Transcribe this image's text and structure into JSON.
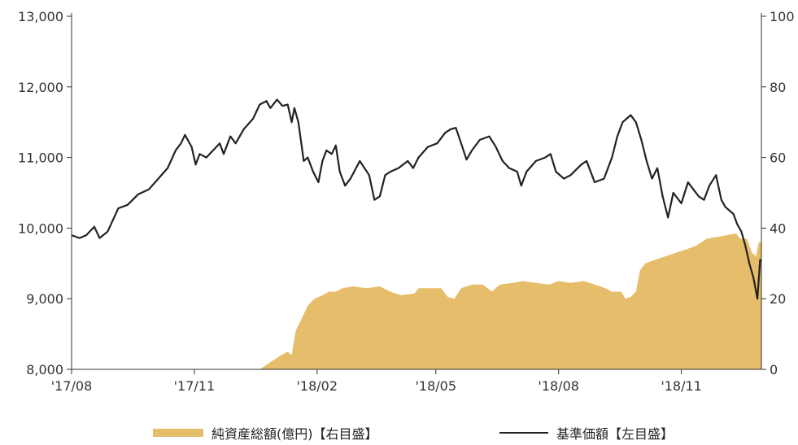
{
  "chart_data": {
    "type": "line",
    "title": "",
    "colors": {
      "nav": "#222222",
      "assets": "#e6bd6a",
      "axis": "#333333"
    },
    "x_start": "2017-08-01",
    "x_end": "2018-12-31",
    "x_ticks": [
      {
        "date": "2017-08-01",
        "label": "'17/08"
      },
      {
        "date": "2017-11-01",
        "label": "'17/11"
      },
      {
        "date": "2018-02-01",
        "label": "'18/02"
      },
      {
        "date": "2018-05-01",
        "label": "'18/05"
      },
      {
        "date": "2018-08-01",
        "label": "'18/08"
      },
      {
        "date": "2018-11-01",
        "label": "'18/11"
      }
    ],
    "y_left": {
      "min": 8000,
      "max": 13000,
      "ticks": [
        "8,000",
        "9,000",
        "10,000",
        "11,000",
        "12,000",
        "13,000"
      ]
    },
    "y_right": {
      "min": 0,
      "max": 100,
      "ticks": [
        "0",
        "20",
        "40",
        "60",
        "80",
        "100"
      ]
    },
    "series": [
      {
        "name": "純資産総額(億円)【右目盛】",
        "axis": "right",
        "type": "area",
        "points": [
          [
            "2017-08-01",
            0
          ],
          [
            "2017-12-20",
            0
          ],
          [
            "2017-12-28",
            2
          ],
          [
            "2018-01-05",
            4
          ],
          [
            "2018-01-10",
            5
          ],
          [
            "2018-01-13",
            4
          ],
          [
            "2018-01-16",
            11
          ],
          [
            "2018-01-20",
            14
          ],
          [
            "2018-01-25",
            18
          ],
          [
            "2018-01-30",
            20
          ],
          [
            "2018-02-05",
            21
          ],
          [
            "2018-02-10",
            22
          ],
          [
            "2018-02-15",
            22
          ],
          [
            "2018-02-20",
            23
          ],
          [
            "2018-02-28",
            23.5
          ],
          [
            "2018-03-10",
            23
          ],
          [
            "2018-03-20",
            23.5
          ],
          [
            "2018-03-28",
            22
          ],
          [
            "2018-04-05",
            21
          ],
          [
            "2018-04-15",
            21.5
          ],
          [
            "2018-04-18",
            23
          ],
          [
            "2018-04-25",
            23
          ],
          [
            "2018-05-05",
            23
          ],
          [
            "2018-05-10",
            20.5
          ],
          [
            "2018-05-15",
            20
          ],
          [
            "2018-05-20",
            23
          ],
          [
            "2018-05-28",
            24
          ],
          [
            "2018-06-05",
            24
          ],
          [
            "2018-06-12",
            22
          ],
          [
            "2018-06-18",
            24
          ],
          [
            "2018-06-28",
            24.5
          ],
          [
            "2018-07-05",
            25
          ],
          [
            "2018-07-15",
            24.5
          ],
          [
            "2018-07-25",
            24
          ],
          [
            "2018-08-01",
            25
          ],
          [
            "2018-08-10",
            24.5
          ],
          [
            "2018-08-20",
            25
          ],
          [
            "2018-08-28",
            24
          ],
          [
            "2018-09-05",
            23
          ],
          [
            "2018-09-10",
            22
          ],
          [
            "2018-09-17",
            22
          ],
          [
            "2018-09-20",
            20
          ],
          [
            "2018-09-24",
            20.5
          ],
          [
            "2018-09-28",
            22
          ],
          [
            "2018-10-01",
            28
          ],
          [
            "2018-10-05",
            30
          ],
          [
            "2018-10-12",
            31
          ],
          [
            "2018-10-20",
            32
          ],
          [
            "2018-10-28",
            33
          ],
          [
            "2018-11-05",
            34
          ],
          [
            "2018-11-12",
            35
          ],
          [
            "2018-11-20",
            37
          ],
          [
            "2018-11-28",
            37.5
          ],
          [
            "2018-12-05",
            38
          ],
          [
            "2018-12-12",
            38.5
          ],
          [
            "2018-12-15",
            37
          ],
          [
            "2018-12-20",
            37
          ],
          [
            "2018-12-24",
            33
          ],
          [
            "2018-12-27",
            32
          ],
          [
            "2018-12-29",
            36
          ],
          [
            "2018-12-31",
            36
          ]
        ]
      },
      {
        "name": "基準価額【左目盛】",
        "axis": "left",
        "type": "line",
        "points": [
          [
            "2017-08-01",
            9900
          ],
          [
            "2017-08-07",
            9860
          ],
          [
            "2017-08-12",
            9900
          ],
          [
            "2017-08-18",
            10020
          ],
          [
            "2017-08-22",
            9860
          ],
          [
            "2017-08-28",
            9950
          ],
          [
            "2017-09-05",
            10280
          ],
          [
            "2017-09-12",
            10330
          ],
          [
            "2017-09-20",
            10480
          ],
          [
            "2017-09-28",
            10550
          ],
          [
            "2017-10-05",
            10700
          ],
          [
            "2017-10-12",
            10850
          ],
          [
            "2017-10-18",
            11100
          ],
          [
            "2017-10-22",
            11200
          ],
          [
            "2017-10-25",
            11320
          ],
          [
            "2017-10-30",
            11150
          ],
          [
            "2017-11-02",
            10900
          ],
          [
            "2017-11-05",
            11050
          ],
          [
            "2017-11-10",
            11000
          ],
          [
            "2017-11-15",
            11100
          ],
          [
            "2017-11-20",
            11200
          ],
          [
            "2017-11-23",
            11050
          ],
          [
            "2017-11-28",
            11300
          ],
          [
            "2017-12-02",
            11200
          ],
          [
            "2017-12-08",
            11400
          ],
          [
            "2017-12-15",
            11550
          ],
          [
            "2017-12-20",
            11750
          ],
          [
            "2017-12-25",
            11800
          ],
          [
            "2017-12-28",
            11700
          ],
          [
            "2018-01-02",
            11820
          ],
          [
            "2018-01-06",
            11730
          ],
          [
            "2018-01-10",
            11750
          ],
          [
            "2018-01-13",
            11500
          ],
          [
            "2018-01-15",
            11700
          ],
          [
            "2018-01-18",
            11500
          ],
          [
            "2018-01-22",
            10950
          ],
          [
            "2018-01-25",
            11000
          ],
          [
            "2018-01-29",
            10800
          ],
          [
            "2018-02-02",
            10650
          ],
          [
            "2018-02-05",
            10950
          ],
          [
            "2018-02-08",
            11100
          ],
          [
            "2018-02-12",
            11050
          ],
          [
            "2018-02-15",
            11170
          ],
          [
            "2018-02-18",
            10800
          ],
          [
            "2018-02-22",
            10600
          ],
          [
            "2018-02-26",
            10700
          ],
          [
            "2018-03-05",
            10950
          ],
          [
            "2018-03-12",
            10750
          ],
          [
            "2018-03-16",
            10400
          ],
          [
            "2018-03-20",
            10450
          ],
          [
            "2018-03-24",
            10750
          ],
          [
            "2018-03-28",
            10800
          ],
          [
            "2018-04-03",
            10850
          ],
          [
            "2018-04-10",
            10950
          ],
          [
            "2018-04-14",
            10850
          ],
          [
            "2018-04-18",
            11000
          ],
          [
            "2018-04-25",
            11150
          ],
          [
            "2018-05-02",
            11200
          ],
          [
            "2018-05-08",
            11350
          ],
          [
            "2018-05-12",
            11400
          ],
          [
            "2018-05-16",
            11420
          ],
          [
            "2018-05-20",
            11200
          ],
          [
            "2018-05-24",
            10970
          ],
          [
            "2018-05-28",
            11100
          ],
          [
            "2018-06-03",
            11250
          ],
          [
            "2018-06-10",
            11300
          ],
          [
            "2018-06-15",
            11150
          ],
          [
            "2018-06-20",
            10950
          ],
          [
            "2018-06-25",
            10850
          ],
          [
            "2018-07-01",
            10800
          ],
          [
            "2018-07-04",
            10600
          ],
          [
            "2018-07-08",
            10800
          ],
          [
            "2018-07-15",
            10950
          ],
          [
            "2018-07-22",
            11000
          ],
          [
            "2018-07-26",
            11050
          ],
          [
            "2018-07-30",
            10800
          ],
          [
            "2018-08-05",
            10700
          ],
          [
            "2018-08-10",
            10750
          ],
          [
            "2018-08-18",
            10900
          ],
          [
            "2018-08-22",
            10950
          ],
          [
            "2018-08-28",
            10650
          ],
          [
            "2018-09-04",
            10700
          ],
          [
            "2018-09-10",
            11000
          ],
          [
            "2018-09-14",
            11300
          ],
          [
            "2018-09-18",
            11500
          ],
          [
            "2018-09-24",
            11600
          ],
          [
            "2018-09-28",
            11500
          ],
          [
            "2018-10-02",
            11250
          ],
          [
            "2018-10-06",
            10950
          ],
          [
            "2018-10-10",
            10700
          ],
          [
            "2018-10-14",
            10850
          ],
          [
            "2018-10-18",
            10450
          ],
          [
            "2018-10-22",
            10150
          ],
          [
            "2018-10-26",
            10500
          ],
          [
            "2018-11-01",
            10350
          ],
          [
            "2018-11-06",
            10650
          ],
          [
            "2018-11-10",
            10550
          ],
          [
            "2018-11-14",
            10450
          ],
          [
            "2018-11-18",
            10400
          ],
          [
            "2018-11-22",
            10600
          ],
          [
            "2018-11-27",
            10750
          ],
          [
            "2018-12-01",
            10400
          ],
          [
            "2018-12-04",
            10300
          ],
          [
            "2018-12-07",
            10250
          ],
          [
            "2018-12-10",
            10200
          ],
          [
            "2018-12-13",
            10050
          ],
          [
            "2018-12-16",
            9950
          ],
          [
            "2018-12-19",
            9750
          ],
          [
            "2018-12-22",
            9500
          ],
          [
            "2018-12-25",
            9300
          ],
          [
            "2018-12-28",
            9000
          ],
          [
            "2018-12-30",
            9550
          ],
          [
            "2018-12-31",
            9550
          ]
        ]
      }
    ]
  }
}
